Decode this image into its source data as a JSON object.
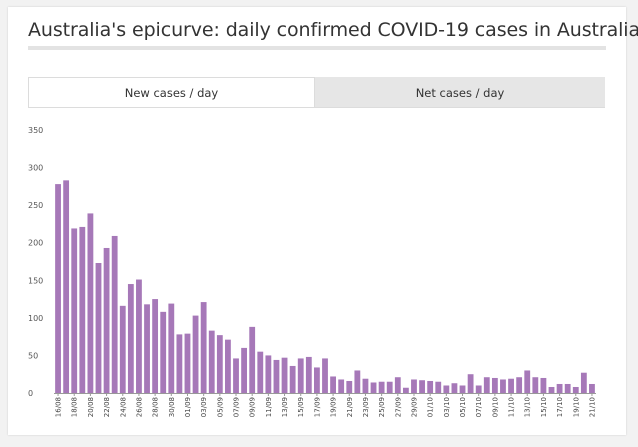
{
  "header": {
    "title": "Australia's epicurve: daily confirmed COVID-19 cases in Australia"
  },
  "tabs": [
    {
      "label": "New cases / day",
      "active": true
    },
    {
      "label": "Net cases / day",
      "active": false
    }
  ],
  "colors": {
    "bar": "#a678b8",
    "active_tab": "#ffffff",
    "inactive_tab": "#e6e6e6"
  },
  "chart_data": {
    "type": "bar",
    "title": "",
    "xlabel": "",
    "ylabel": "",
    "ylim": [
      0,
      350
    ],
    "yticks": [
      0,
      50,
      100,
      150,
      200,
      250,
      300,
      350
    ],
    "categories": [
      "16/08",
      "17/08",
      "18/08",
      "19/08",
      "20/08",
      "21/08",
      "22/08",
      "23/08",
      "24/08",
      "25/08",
      "26/08",
      "27/08",
      "28/08",
      "29/08",
      "30/08",
      "31/08",
      "01/09",
      "02/09",
      "03/09",
      "04/09",
      "05/09",
      "06/09",
      "07/09",
      "08/09",
      "09/09",
      "10/09",
      "11/09",
      "12/09",
      "13/09",
      "14/09",
      "15/09",
      "16/09",
      "17/09",
      "18/09",
      "19/09",
      "20/09",
      "21/09",
      "22/09",
      "23/09",
      "24/09",
      "25/09",
      "26/09",
      "27/09",
      "28/09",
      "29/09",
      "30/09",
      "01/10",
      "02/10",
      "03/10",
      "04/10",
      "05/10",
      "06/10",
      "07/10",
      "08/10",
      "09/10",
      "10/10",
      "11/10",
      "12/10",
      "13/10",
      "14/10",
      "15/10",
      "16/10",
      "17/10",
      "18/10",
      "19/10",
      "20/10",
      "21/10"
    ],
    "tick_labels": [
      "16/08",
      "18/08",
      "20/08",
      "22/08",
      "24/08",
      "26/08",
      "28/08",
      "30/08",
      "01/09",
      "03/09",
      "05/09",
      "07/09",
      "09/09",
      "11/09",
      "13/09",
      "15/09",
      "17/09",
      "19/09",
      "21/09",
      "23/09",
      "25/09",
      "27/09",
      "29/09",
      "01/10",
      "03/10",
      "05/10",
      "07/10",
      "09/10",
      "11/10",
      "13/10",
      "15/10",
      "17/10",
      "19/10",
      "21/10"
    ],
    "values": [
      278,
      283,
      219,
      221,
      239,
      173,
      193,
      209,
      116,
      145,
      151,
      118,
      125,
      108,
      119,
      78,
      79,
      103,
      121,
      83,
      77,
      71,
      46,
      60,
      88,
      55,
      50,
      44,
      47,
      36,
      46,
      48,
      34,
      46,
      22,
      18,
      16,
      30,
      19,
      14,
      15,
      15,
      21,
      7,
      18,
      17,
      16,
      15,
      10,
      13,
      10,
      25,
      10,
      21,
      20,
      18,
      19,
      21,
      30,
      21,
      20,
      8,
      12,
      12,
      8,
      27,
      12
    ]
  }
}
